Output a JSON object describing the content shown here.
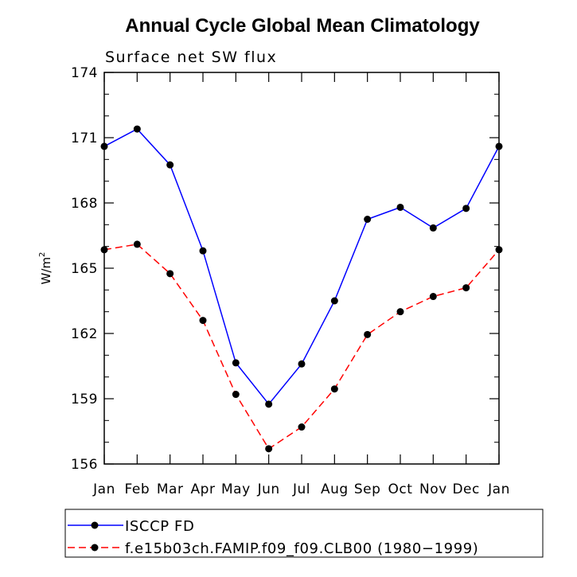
{
  "chart_data": {
    "type": "line",
    "title": "Annual Cycle Global Mean Climatology",
    "subtitle": "Surface net SW flux",
    "ylabel": "W/m",
    "ylabel_sup": "2",
    "xlabel": "",
    "categories": [
      "Jan",
      "Feb",
      "Mar",
      "Apr",
      "May",
      "Jun",
      "Jul",
      "Aug",
      "Sep",
      "Oct",
      "Nov",
      "Dec",
      "Jan"
    ],
    "ylim": [
      156,
      174
    ],
    "yticks": [
      156,
      159,
      162,
      165,
      168,
      171,
      174
    ],
    "grid": false,
    "legend_position": "bottom",
    "series": [
      {
        "name": "ISCCP FD",
        "color": "#0000ff",
        "style": "solid",
        "values": [
          170.6,
          171.4,
          169.75,
          165.8,
          160.65,
          158.75,
          160.6,
          163.5,
          167.25,
          167.8,
          166.85,
          167.75,
          170.6
        ]
      },
      {
        "name": "f.e15b03ch.FAMIP.f09_f09.CLB00 (1980−1999)",
        "color": "#ff0000",
        "style": "dashed",
        "values": [
          165.85,
          166.1,
          164.75,
          162.6,
          159.2,
          156.7,
          157.7,
          159.45,
          161.95,
          163.0,
          163.7,
          164.1,
          165.85
        ]
      }
    ]
  }
}
